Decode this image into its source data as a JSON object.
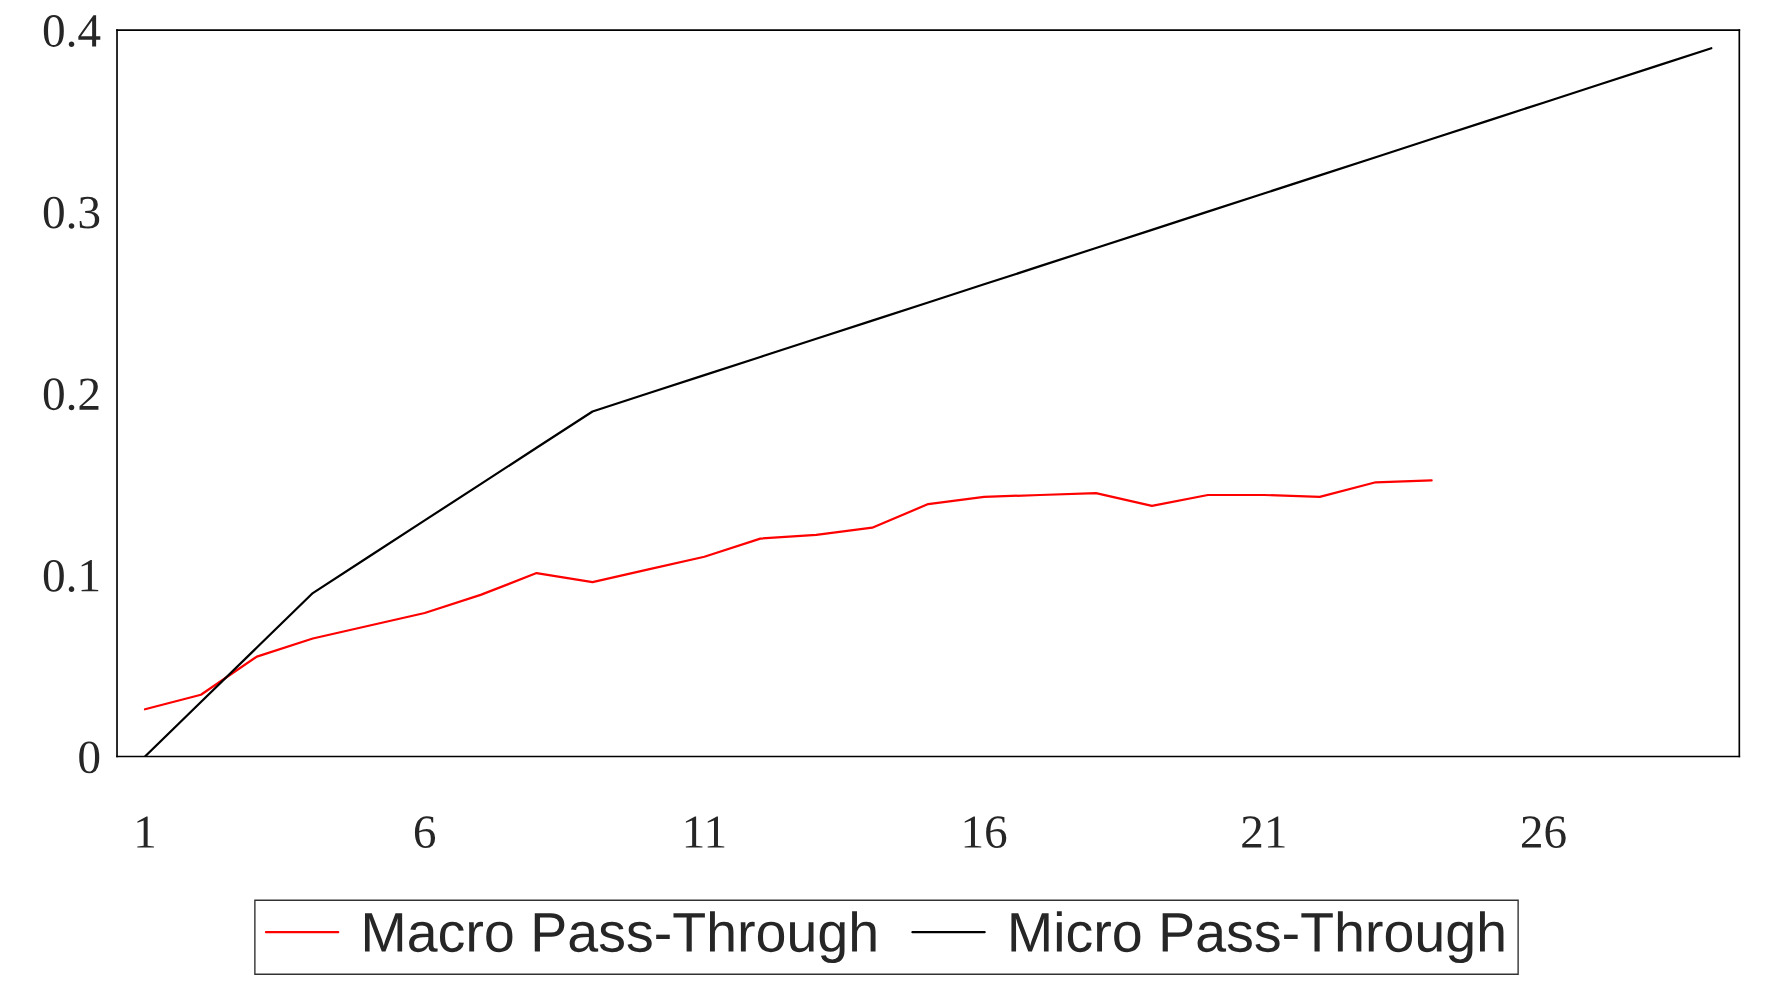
{
  "chart_data": {
    "type": "line",
    "categories": [
      "1",
      null,
      null,
      null,
      null,
      "6",
      null,
      null,
      null,
      null,
      "11",
      null,
      null,
      null,
      null,
      "16",
      null,
      null,
      null,
      null,
      "21",
      null,
      null,
      null,
      null,
      "26",
      null,
      null,
      null
    ],
    "series": [
      {
        "name": "Macro Pass-Through",
        "color": "#ff0000",
        "values": [
          0.026,
          0.034,
          0.055,
          0.065,
          0.072,
          0.079,
          0.089,
          0.101,
          0.096,
          0.103,
          0.11,
          0.12,
          0.122,
          0.126,
          0.139,
          0.143,
          0.144,
          0.145,
          0.138,
          0.144,
          0.144,
          0.143,
          0.151,
          0.152,
          null,
          null,
          null,
          null,
          null
        ]
      },
      {
        "name": "Micro Pass-Through",
        "color": "#000000",
        "values": [
          0,
          0.03,
          0.06,
          0.09,
          0.11,
          0.13,
          0.15,
          0.17,
          0.19,
          0.2,
          0.21,
          0.22,
          0.23,
          0.24,
          0.25,
          0.26,
          0.27,
          0.28,
          0.29,
          0.3,
          0.31,
          0.32,
          0.33,
          0.34,
          0.35,
          0.36,
          0.37,
          0.38,
          0.39
        ]
      }
    ],
    "ylim": [
      0,
      0.4
    ],
    "yticks": [
      0,
      0.1,
      0.2,
      0.3,
      0.4
    ],
    "grid": false,
    "legend": "bottom",
    "marker": "none",
    "line_style": "solid"
  }
}
